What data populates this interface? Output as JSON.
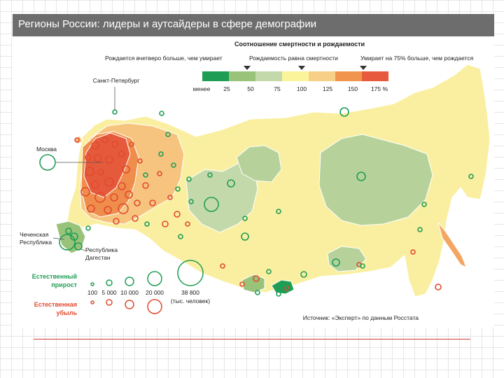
{
  "title": "Регионы России: лидеры и аутсайдеры в сфере демографии",
  "legend": {
    "heading": "Соотношение смертности и рождаемости",
    "annotations": [
      "Рождается вчетверо больше, чем умирает",
      "Рождаемость равна смертности",
      "Умирает на 75% больше, чем рождается"
    ],
    "scale_colors": [
      "#1f9d55",
      "#9ac37a",
      "#c4d9a9",
      "#fbf49a",
      "#f7cf86",
      "#f0944e",
      "#e85a3e"
    ],
    "scale_labels": [
      "менее",
      "25",
      "50",
      "75",
      "100",
      "125",
      "150",
      "175 %"
    ]
  },
  "map_labels": {
    "spb": "Санкт-Петербург",
    "moscow": "Москва",
    "chechnya": "Чеченская Республика",
    "dagestan": "Республика Дагестан"
  },
  "size_legend": {
    "growth_label": "Естественный прирост",
    "decline_label": "Естественная убыль",
    "values": [
      "100",
      "5 000",
      "10 000",
      "20 000",
      "38 800"
    ],
    "unit": "(тыс. человек)",
    "growth_color": "#1f9d55",
    "decline_color": "#e04a2e"
  },
  "source": "Источник: «Эксперт» по данным Росстата"
}
